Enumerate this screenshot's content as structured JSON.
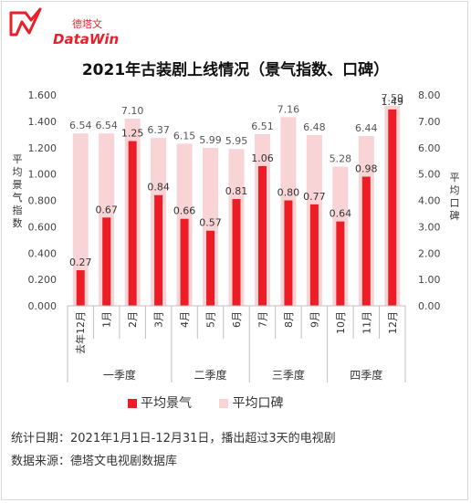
{
  "logo": {
    "text": "DataWin",
    "cn": "德塔文"
  },
  "chart_data": {
    "type": "bar",
    "title": "2021年古装剧上线情况（景气指数、口碑）",
    "categories": [
      "去年12月",
      "1月",
      "2月",
      "3月",
      "4月",
      "5月",
      "6月",
      "7月",
      "8月",
      "9月",
      "10月",
      "11月",
      "12月"
    ],
    "groups": [
      {
        "label": "一季度",
        "from": 0,
        "to": 3
      },
      {
        "label": "二季度",
        "from": 4,
        "to": 6
      },
      {
        "label": "三季度",
        "from": 7,
        "to": 9
      },
      {
        "label": "四季度",
        "from": 10,
        "to": 12
      }
    ],
    "series": [
      {
        "name": "平均景气",
        "axis": "left",
        "color": "#ee1c25",
        "values": [
          0.27,
          0.67,
          1.25,
          0.84,
          0.66,
          0.57,
          0.81,
          1.06,
          0.8,
          0.77,
          0.64,
          0.98,
          1.49
        ],
        "labels": [
          "0.27",
          "0.67",
          "1.25",
          "0.84",
          "0.66",
          "0.57",
          "0.81",
          "1.06",
          "0.80",
          "0.77",
          "0.64",
          "0.98",
          "1.49"
        ]
      },
      {
        "name": "平均口碑",
        "axis": "right",
        "color": "#f9d4d6",
        "values": [
          6.54,
          6.54,
          7.1,
          6.37,
          6.15,
          5.99,
          5.95,
          6.51,
          7.16,
          6.48,
          5.28,
          6.44,
          7.59
        ],
        "labels": [
          "6.54",
          "6.54",
          "7.10",
          "6.37",
          "6.15",
          "5.99",
          "5.95",
          "6.51",
          "7.16",
          "6.48",
          "5.28",
          "6.44",
          "7.59"
        ]
      }
    ],
    "ylabel_left": "平均景气指数",
    "ylabel_right": "平均口碑",
    "ylim_left": [
      0,
      1.6
    ],
    "ylim_right": [
      0,
      8
    ],
    "yticks_left": [
      "0.000",
      "0.200",
      "0.400",
      "0.600",
      "0.800",
      "1.000",
      "1.200",
      "1.400",
      "1.600"
    ],
    "yticks_right": [
      "0.00",
      "1.00",
      "2.00",
      "3.00",
      "4.00",
      "5.00",
      "6.00",
      "7.00",
      "8.00"
    ],
    "legend_position": "bottom"
  },
  "footer": {
    "line1": "统计日期：2021年1月1日-12月31日，播出超过3天的电视剧",
    "line2": "数据来源：德塔文电视剧数据库"
  }
}
